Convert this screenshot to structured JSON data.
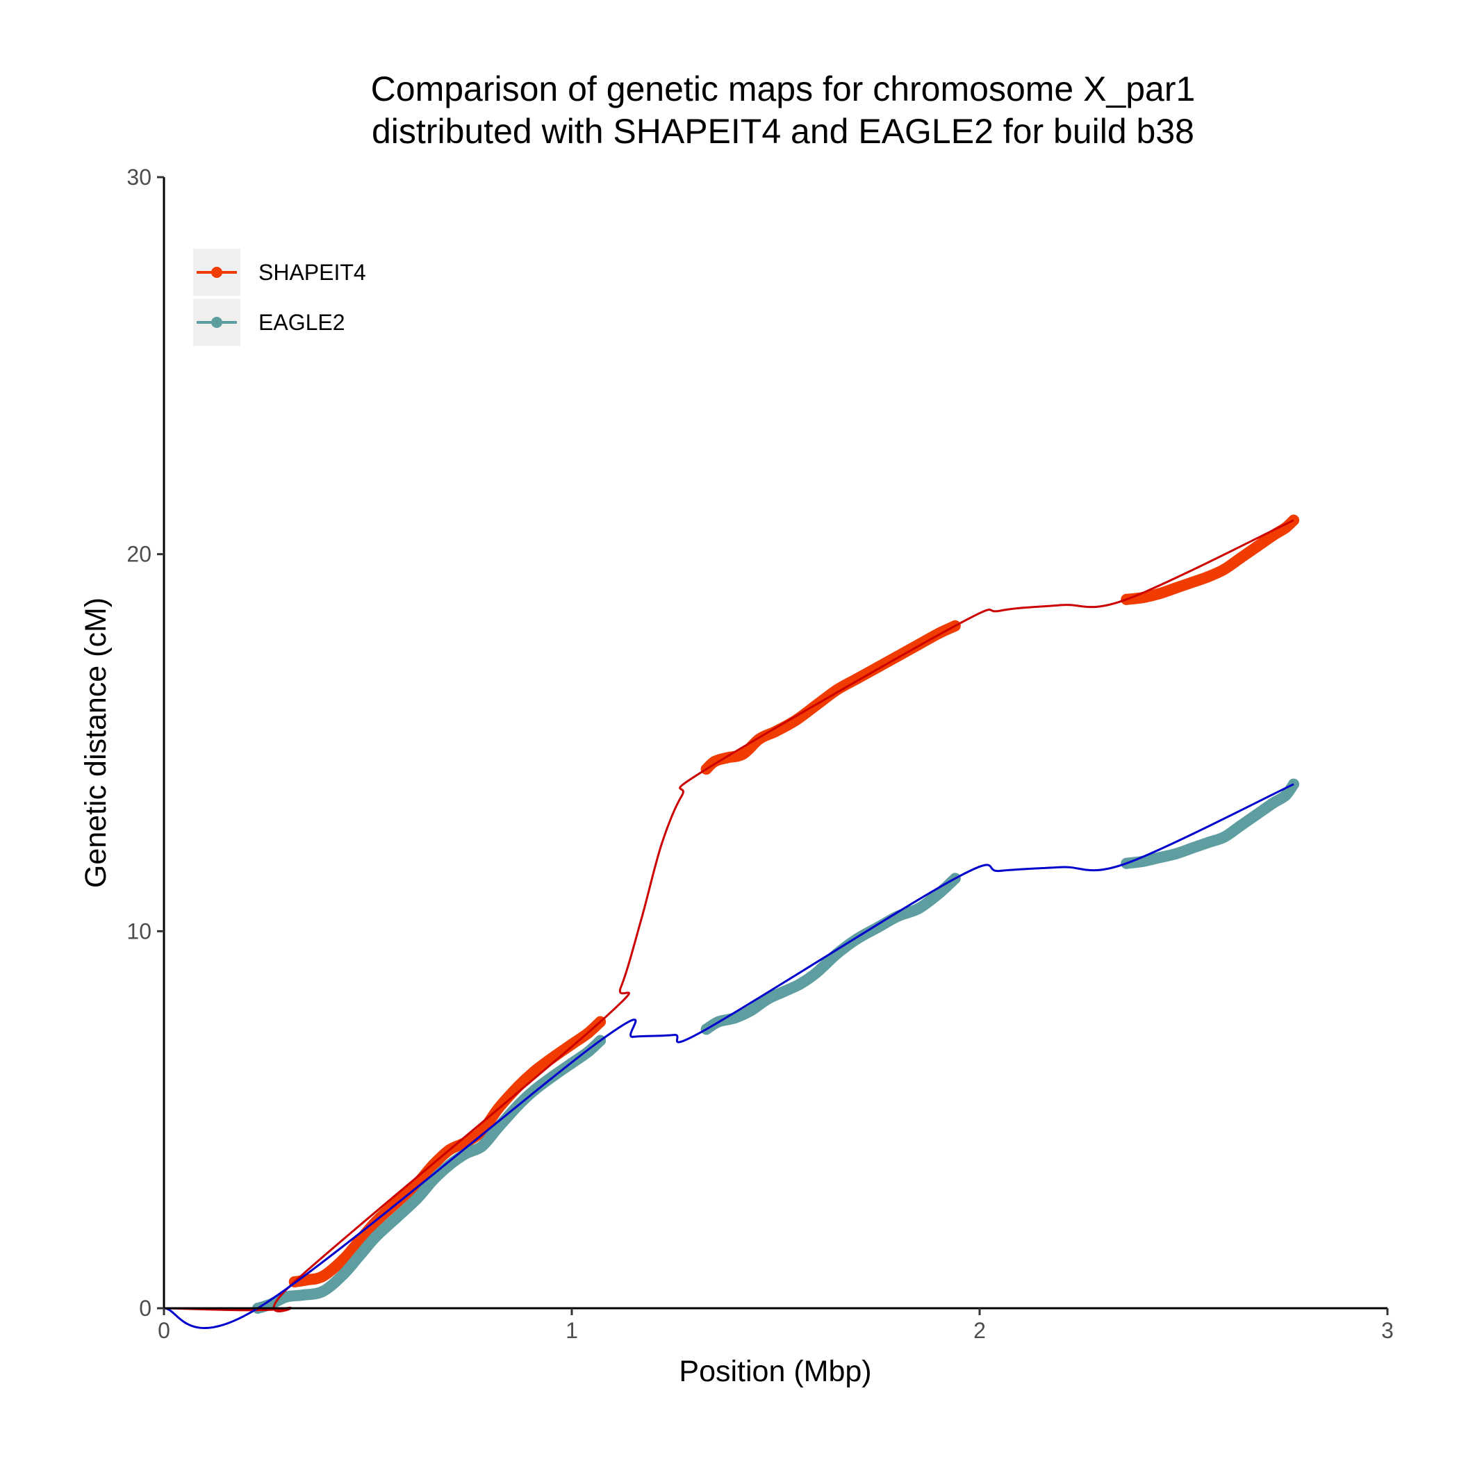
{
  "chart_data": {
    "type": "line",
    "title": [
      "Comparison of genetic maps for chromosome X_par1",
      "distributed with SHAPEIT4 and EAGLE2 for build b38"
    ],
    "xlabel": "Position (Mbp)",
    "ylabel": "Genetic distance (cM)",
    "xlim": [
      0,
      3
    ],
    "ylim": [
      0,
      30
    ],
    "xticks": [
      0,
      1,
      2,
      3
    ],
    "yticks": [
      0,
      10,
      20,
      30
    ],
    "grid": false,
    "legend_position": "top-left",
    "series": [
      {
        "name": "SHAPEIT4",
        "color": "#f03c00",
        "line_color": "#cc0000",
        "segments": [
          {
            "x": [
              0.32,
              0.35,
              0.39,
              0.44,
              0.48,
              0.52,
              0.57,
              0.62,
              0.66,
              0.7,
              0.74,
              0.78,
              0.82,
              0.87,
              0.91,
              0.96,
              1.0,
              1.04,
              1.07
            ],
            "y": [
              0.7,
              0.75,
              0.85,
              1.3,
              1.8,
              2.3,
              2.8,
              3.3,
              3.8,
              4.2,
              4.4,
              4.7,
              5.3,
              5.9,
              6.3,
              6.7,
              7.0,
              7.3,
              7.6
            ]
          },
          {
            "x": [
              1.33,
              1.35,
              1.38,
              1.42,
              1.46,
              1.5,
              1.55,
              1.6,
              1.65,
              1.7,
              1.75,
              1.8,
              1.85,
              1.9,
              1.94
            ],
            "y": [
              14.3,
              14.5,
              14.6,
              14.7,
              15.1,
              15.3,
              15.6,
              16.0,
              16.4,
              16.7,
              17.0,
              17.3,
              17.6,
              17.9,
              18.1
            ]
          },
          {
            "x": [
              2.36,
              2.4,
              2.44,
              2.48,
              2.52,
              2.56,
              2.6,
              2.64,
              2.68,
              2.72,
              2.75,
              2.77
            ],
            "y": [
              18.8,
              18.85,
              18.95,
              19.1,
              19.25,
              19.4,
              19.6,
              19.9,
              20.2,
              20.5,
              20.7,
              20.9
            ]
          }
        ],
        "interpolated": {
          "x": [
            0.0,
            0.3,
            0.32,
            1.07,
            1.12,
            1.17,
            1.22,
            1.27,
            1.33,
            1.94,
            2.05,
            2.2,
            2.36,
            2.77
          ],
          "y": [
            0.0,
            0.0,
            0.7,
            7.6,
            8.5,
            10.3,
            12.3,
            13.6,
            14.3,
            18.1,
            18.5,
            18.65,
            18.8,
            20.9
          ]
        }
      },
      {
        "name": "EAGLE2",
        "color": "#5f9ea0",
        "line_color": "#0000cc",
        "segments": [
          {
            "x": [
              0.23,
              0.26,
              0.3,
              0.34,
              0.39,
              0.44,
              0.48,
              0.52,
              0.57,
              0.62,
              0.66,
              0.7,
              0.74,
              0.78,
              0.82,
              0.87,
              0.91,
              0.96,
              1.0,
              1.04,
              1.07
            ],
            "y": [
              0.0,
              0.1,
              0.3,
              0.35,
              0.45,
              0.9,
              1.4,
              1.9,
              2.4,
              2.9,
              3.4,
              3.8,
              4.1,
              4.3,
              4.8,
              5.4,
              5.8,
              6.2,
              6.5,
              6.8,
              7.1
            ]
          },
          {
            "x": [
              1.33,
              1.36,
              1.4,
              1.44,
              1.48,
              1.52,
              1.56,
              1.6,
              1.65,
              1.7,
              1.75,
              1.8,
              1.85,
              1.9,
              1.94
            ],
            "y": [
              7.4,
              7.6,
              7.7,
              7.9,
              8.2,
              8.4,
              8.6,
              8.9,
              9.4,
              9.8,
              10.1,
              10.4,
              10.6,
              11.0,
              11.4
            ]
          },
          {
            "x": [
              2.36,
              2.4,
              2.44,
              2.48,
              2.52,
              2.56,
              2.6,
              2.64,
              2.68,
              2.72,
              2.75,
              2.77
            ],
            "y": [
              11.8,
              11.85,
              11.95,
              12.05,
              12.2,
              12.35,
              12.5,
              12.8,
              13.1,
              13.4,
              13.6,
              13.9
            ]
          }
        ],
        "interpolated": {
          "x": [
            0.0,
            0.23,
            1.07,
            1.15,
            1.25,
            1.33,
            1.94,
            2.05,
            2.2,
            2.36,
            2.77
          ],
          "y": [
            0.0,
            0.0,
            7.1,
            7.2,
            7.25,
            7.4,
            11.4,
            11.6,
            11.7,
            11.8,
            13.9
          ]
        }
      }
    ]
  }
}
